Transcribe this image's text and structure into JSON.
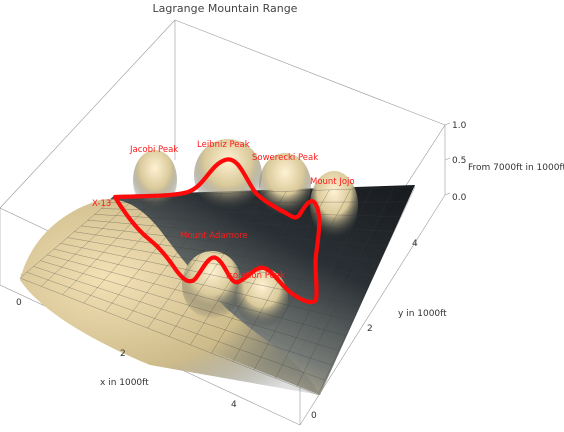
{
  "chart_data": {
    "type": "surface3d",
    "title": "Lagrange Mountain Range",
    "xlabel": "x in 1000ft",
    "ylabel": "y in 1000ft",
    "zlabel": "From 7000ft in 1000ft",
    "x_ticks": [
      "0",
      "2",
      "4"
    ],
    "y_ticks": [
      "0",
      "2",
      "4"
    ],
    "z_ticks": [
      "0.0",
      "0.5",
      "1.0"
    ],
    "xlim": [
      0,
      5
    ],
    "ylim": [
      0,
      5
    ],
    "zlim": [
      0,
      1.1
    ],
    "colors": {
      "surface_high": "#f2ddb0",
      "surface_low": "#101418",
      "path": "#ff0a0a",
      "labels": "#ff1a1a"
    },
    "peaks": [
      {
        "label": "Jacobi Peak",
        "x": 2.1,
        "y": 4.8,
        "z": 0.55
      },
      {
        "label": "Leibniz Peak",
        "x": 3.1,
        "y": 4.6,
        "z": 0.75
      },
      {
        "label": "Sowerecki Peak",
        "x": 4.0,
        "y": 4.5,
        "z": 0.65
      },
      {
        "label": "Mount Jojo",
        "x": 4.7,
        "y": 4.1,
        "z": 0.55
      },
      {
        "label": "Mount Adamore",
        "x": 3.2,
        "y": 2.7,
        "z": 0.55
      },
      {
        "label": "Isolation Peak",
        "x": 3.8,
        "y": 2.6,
        "z": 0.45
      },
      {
        "label": "X-13",
        "x": 0.6,
        "y": 4.2,
        "z": 0.75
      }
    ]
  }
}
